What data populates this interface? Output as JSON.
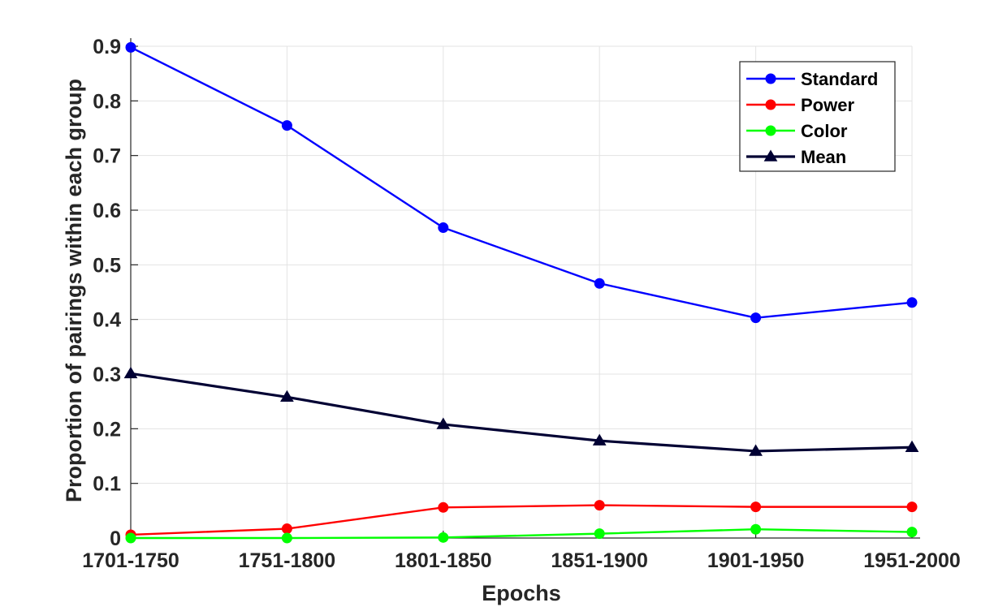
{
  "chart_data": {
    "type": "line",
    "categories": [
      "1701-1750",
      "1751-1800",
      "1801-1850",
      "1851-1900",
      "1901-1950",
      "1951-2000"
    ],
    "series": [
      {
        "name": "Standard",
        "color": "#0000ff",
        "marker": "circle",
        "values": [
          0.898,
          0.755,
          0.568,
          0.466,
          0.403,
          0.431
        ]
      },
      {
        "name": "Power",
        "color": "#ff0000",
        "marker": "circle",
        "values": [
          0.006,
          0.017,
          0.056,
          0.06,
          0.057,
          0.057
        ]
      },
      {
        "name": "Color",
        "color": "#00ff00",
        "marker": "circle",
        "values": [
          0.0,
          0.0,
          0.001,
          0.008,
          0.016,
          0.011
        ]
      },
      {
        "name": "Mean",
        "color": "#000033",
        "marker": "triangle",
        "values": [
          0.301,
          0.258,
          0.208,
          0.178,
          0.159,
          0.166
        ]
      }
    ],
    "title": "",
    "xlabel": "Epochs",
    "ylabel": "Proportion of pairings within each group",
    "ylim": [
      0,
      0.9
    ],
    "yticks": [
      "0",
      "0.1",
      "0.2",
      "0.3",
      "0.4",
      "0.5",
      "0.6",
      "0.7",
      "0.8",
      "0.9"
    ],
    "grid": true,
    "legend_position": "top-right"
  }
}
